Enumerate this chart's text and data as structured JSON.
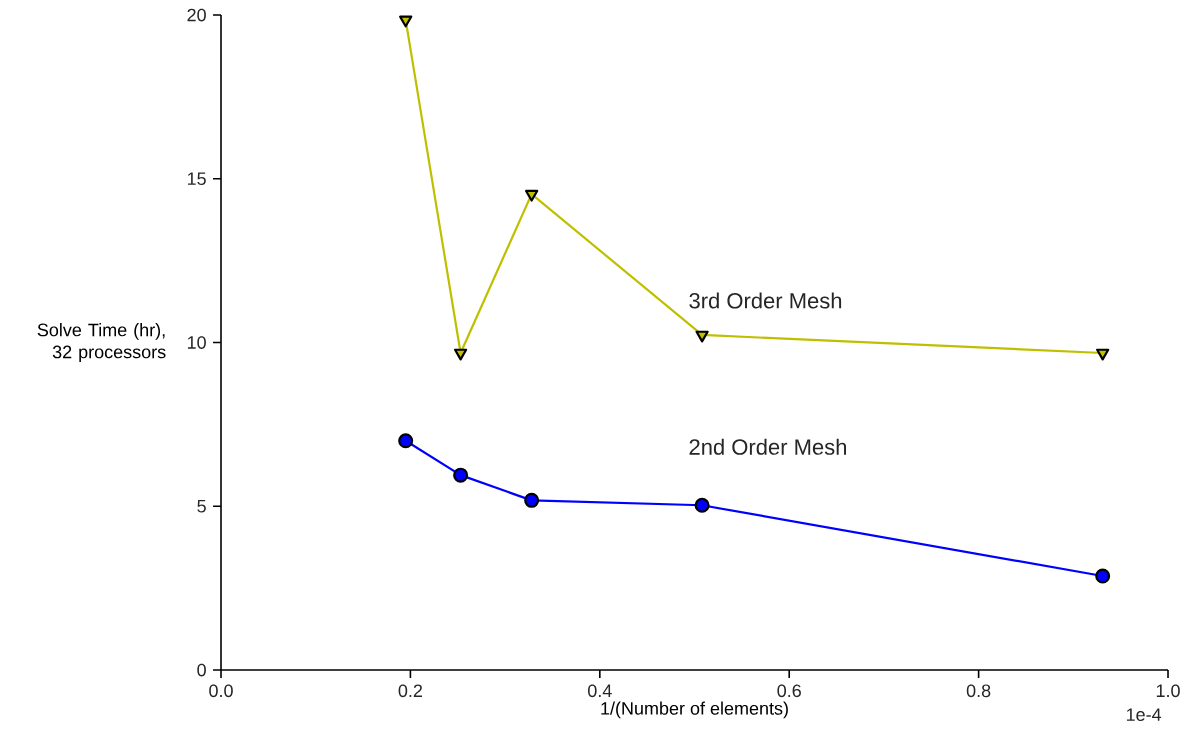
{
  "chart_data": {
    "type": "line",
    "xlabel": "1/(Number of elements)",
    "ylabel": "Solve Time (hr), 32 processors",
    "annotations": [
      "1e-4"
    ],
    "xlim": [
      0,
      1.0
    ],
    "ylim": [
      0,
      20
    ],
    "xticks": [
      {
        "value": 0,
        "label": "0.0"
      },
      {
        "value": 0.2,
        "label": "0.2"
      },
      {
        "value": 0.4,
        "label": "0.4"
      },
      {
        "value": 0.6,
        "label": "0.6"
      },
      {
        "value": 0.8,
        "label": "0.8"
      },
      {
        "value": 1.0,
        "label": "1.0"
      }
    ],
    "yticks": [
      0,
      5,
      10,
      15,
      20
    ],
    "grid": false,
    "series": [
      {
        "name": "3rd Order Mesh",
        "color": "#bfbf00",
        "marker": "triangle",
        "x": [
          0.195,
          0.253,
          0.328,
          0.508,
          0.931
        ],
        "values": [
          19.85,
          9.68,
          14.53,
          10.23,
          9.68
        ]
      },
      {
        "name": "2nd Order Mesh",
        "color": "#0000ff",
        "marker": "circle",
        "x": [
          0.195,
          0.253,
          0.328,
          0.508,
          0.931
        ],
        "values": [
          7.0,
          5.95,
          5.18,
          5.03,
          2.87
        ]
      }
    ]
  }
}
